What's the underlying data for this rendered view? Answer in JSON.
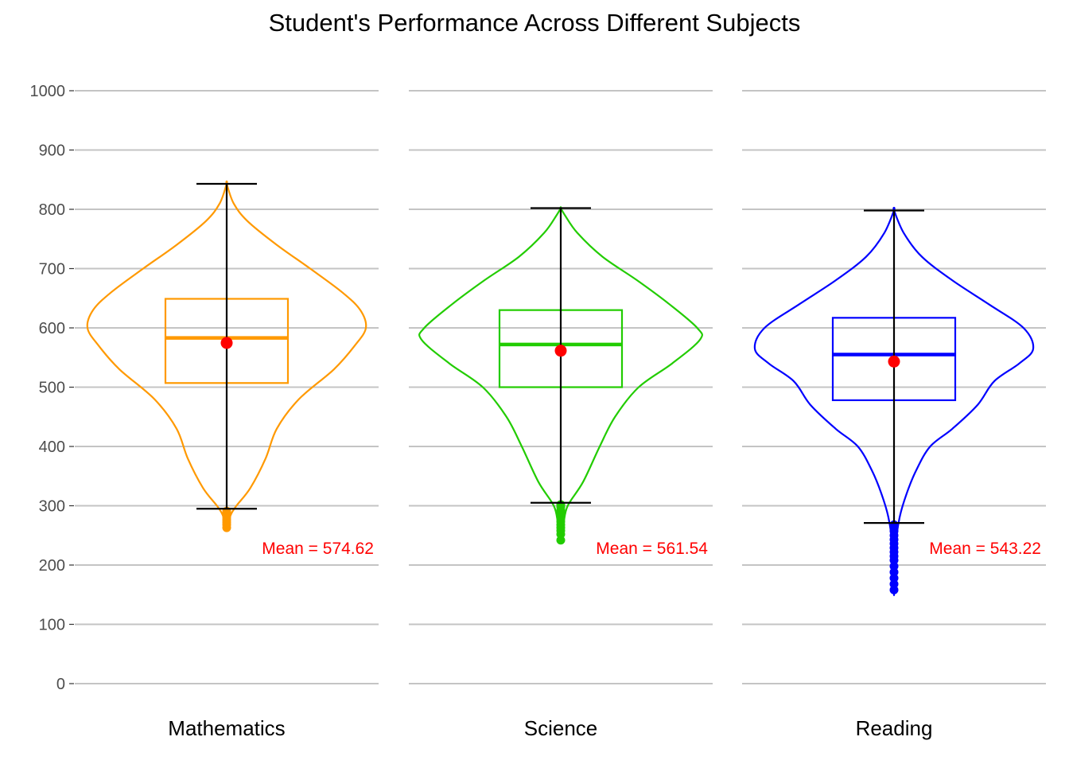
{
  "chart_data": {
    "type": "violin",
    "title": "Student's Performance Across Different Subjects",
    "xlabel": "",
    "ylabel": "",
    "ylim": [
      0,
      1000
    ],
    "yticks": [
      0,
      100,
      200,
      300,
      400,
      500,
      600,
      700,
      800,
      900,
      1000
    ],
    "grid": true,
    "legend": "none",
    "mean_label_prefix": "Mean = ",
    "mean_marker_color": "#ff0000",
    "whisker_color": "#000000",
    "panels": [
      {
        "name": "Mathematics",
        "color": "#ff9900",
        "mean": 574.62,
        "mean_label": "574.62",
        "q1": 507,
        "median": 583,
        "q3": 649,
        "whisker_low": 295,
        "whisker_high": 843,
        "outliers": [
          263,
          268,
          272,
          276,
          280,
          284,
          288,
          291
        ],
        "density": [
          [
            262,
            0.0
          ],
          [
            285,
            0.03
          ],
          [
            300,
            0.07
          ],
          [
            330,
            0.17
          ],
          [
            380,
            0.28
          ],
          [
            430,
            0.36
          ],
          [
            480,
            0.52
          ],
          [
            530,
            0.77
          ],
          [
            570,
            0.92
          ],
          [
            600,
            1.0
          ],
          [
            630,
            0.96
          ],
          [
            660,
            0.83
          ],
          [
            700,
            0.6
          ],
          [
            740,
            0.36
          ],
          [
            780,
            0.15
          ],
          [
            810,
            0.05
          ],
          [
            843,
            0.0
          ]
        ]
      },
      {
        "name": "Science",
        "color": "#22cc00",
        "mean": 561.54,
        "mean_label": "561.54",
        "q1": 500,
        "median": 572,
        "q3": 630,
        "whisker_low": 305,
        "whisker_high": 802,
        "outliers": [
          242,
          252,
          258,
          263,
          268,
          273,
          278,
          283,
          288,
          293,
          298,
          302
        ],
        "density": [
          [
            242,
            0.0
          ],
          [
            270,
            0.02
          ],
          [
            300,
            0.05
          ],
          [
            340,
            0.16
          ],
          [
            400,
            0.28
          ],
          [
            450,
            0.39
          ],
          [
            500,
            0.56
          ],
          [
            540,
            0.8
          ],
          [
            580,
            1.0
          ],
          [
            600,
            0.98
          ],
          [
            640,
            0.78
          ],
          [
            680,
            0.55
          ],
          [
            720,
            0.3
          ],
          [
            760,
            0.12
          ],
          [
            790,
            0.03
          ],
          [
            802,
            0.0
          ]
        ]
      },
      {
        "name": "Reading",
        "color": "#0000ff",
        "mean": 543.22,
        "mean_label": "543.22",
        "q1": 478,
        "median": 555,
        "q3": 617,
        "whisker_low": 271,
        "whisker_high": 798,
        "outliers": [
          158,
          168,
          178,
          188,
          198,
          208,
          215,
          222,
          229,
          236,
          243,
          250,
          257,
          264,
          268
        ],
        "density": [
          [
            158,
            0.0
          ],
          [
            230,
            0.01
          ],
          [
            280,
            0.04
          ],
          [
            320,
            0.09
          ],
          [
            360,
            0.16
          ],
          [
            400,
            0.26
          ],
          [
            430,
            0.42
          ],
          [
            470,
            0.6
          ],
          [
            510,
            0.72
          ],
          [
            540,
            0.9
          ],
          [
            565,
            1.0
          ],
          [
            600,
            0.93
          ],
          [
            640,
            0.68
          ],
          [
            680,
            0.42
          ],
          [
            720,
            0.2
          ],
          [
            760,
            0.07
          ],
          [
            798,
            0.0
          ]
        ]
      }
    ]
  }
}
